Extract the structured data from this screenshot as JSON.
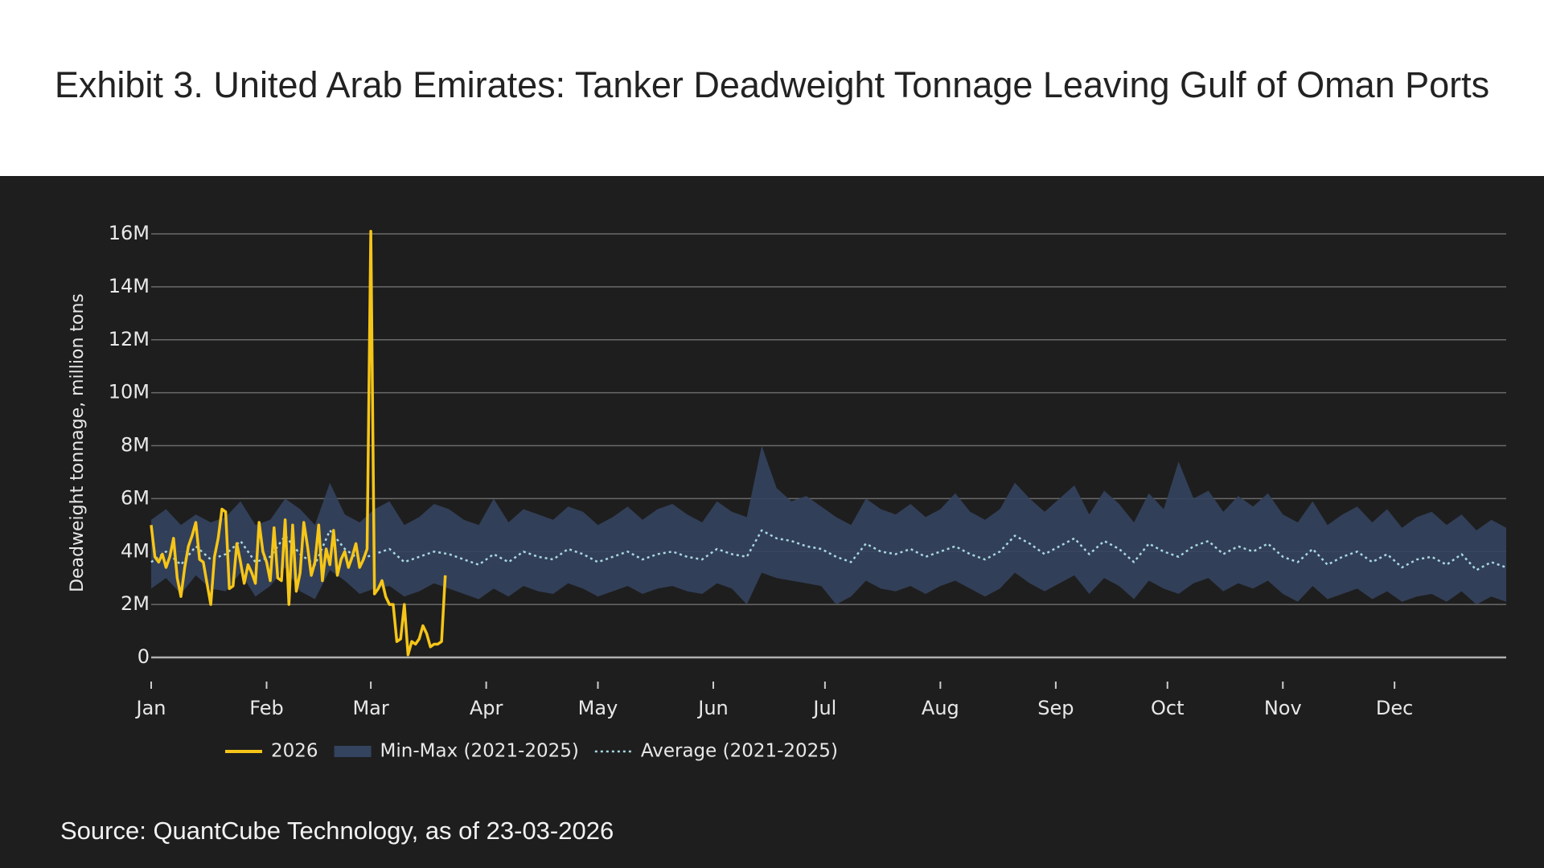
{
  "chart_data": {
    "type": "line",
    "title": "Exhibit 3. United Arab Emirates: Tanker Deadweight Tonnage Leaving Gulf of Oman Ports",
    "ylabel": "Deadweight tonnage, million tons",
    "source": "Source: QuantCube Technology, as of 23-03-2026",
    "xlim": [
      0,
      364
    ],
    "xticks": [
      {
        "value": 0,
        "label": "Jan"
      },
      {
        "value": 31,
        "label": "Feb"
      },
      {
        "value": 59,
        "label": "Mar"
      },
      {
        "value": 90,
        "label": "Apr"
      },
      {
        "value": 120,
        "label": "May"
      },
      {
        "value": 151,
        "label": "Jun"
      },
      {
        "value": 181,
        "label": "Jul"
      },
      {
        "value": 212,
        "label": "Aug"
      },
      {
        "value": 243,
        "label": "Sep"
      },
      {
        "value": 273,
        "label": "Oct"
      },
      {
        "value": 304,
        "label": "Nov"
      },
      {
        "value": 334,
        "label": "Dec"
      }
    ],
    "ylim": [
      0,
      16
    ],
    "yticks": [
      0,
      {
        "value": 2,
        "label": "2M"
      },
      {
        "value": 4,
        "label": "4M"
      },
      {
        "value": 6,
        "label": "6M"
      },
      {
        "value": 8,
        "label": "8M"
      },
      {
        "value": 10,
        "label": "10M"
      },
      {
        "value": 12,
        "label": "12M"
      },
      {
        "value": 14,
        "label": "14M"
      },
      {
        "value": 16,
        "label": "16M"
      }
    ],
    "grid": true,
    "legend": "bottom",
    "series": [
      {
        "name": "2026",
        "color": "#f5c518",
        "x": [
          0,
          1,
          2,
          3,
          4,
          5,
          6,
          7,
          8,
          9,
          10,
          11,
          12,
          13,
          14,
          15,
          16,
          17,
          18,
          19,
          20,
          21,
          22,
          23,
          24,
          25,
          26,
          27,
          28,
          29,
          30,
          31,
          32,
          33,
          34,
          35,
          36,
          37,
          38,
          39,
          40,
          41,
          42,
          43,
          44,
          45,
          46,
          47,
          48,
          49,
          50,
          51,
          52,
          53,
          54,
          55,
          56,
          57,
          58,
          59,
          60,
          61,
          62,
          63,
          64,
          65,
          66,
          67,
          68,
          69,
          70,
          71,
          72,
          73,
          74,
          75,
          76,
          77,
          78,
          79
        ],
        "values": [
          5.0,
          3.8,
          3.6,
          3.9,
          3.4,
          3.8,
          4.5,
          3.0,
          2.3,
          3.4,
          4.2,
          4.6,
          5.1,
          3.7,
          3.6,
          2.8,
          2.0,
          3.8,
          4.5,
          5.6,
          5.5,
          2.6,
          2.7,
          4.3,
          3.6,
          2.8,
          3.5,
          3.2,
          2.8,
          5.1,
          4.0,
          3.6,
          2.9,
          4.9,
          3.0,
          2.9,
          5.2,
          2.0,
          5.0,
          2.5,
          3.2,
          5.1,
          4.2,
          3.1,
          3.6,
          5.0,
          2.9,
          4.1,
          3.5,
          4.8,
          3.1,
          3.7,
          4.0,
          3.4,
          3.8,
          4.3,
          3.4,
          3.7,
          4.1,
          16.1,
          2.4,
          2.6,
          2.9,
          2.3,
          2.0,
          2.0,
          0.6,
          0.7,
          2.0,
          0.1,
          0.6,
          0.5,
          0.7,
          1.2,
          0.9,
          0.4,
          0.5,
          0.5,
          0.6,
          3.1
        ]
      },
      {
        "name": "Min-Max (2021-2025)",
        "color": "#34435e",
        "x": [
          0,
          4,
          8,
          12,
          16,
          20,
          24,
          28,
          32,
          36,
          40,
          44,
          48,
          52,
          56,
          60,
          64,
          68,
          72,
          76,
          80,
          84,
          88,
          92,
          96,
          100,
          104,
          108,
          112,
          116,
          120,
          124,
          128,
          132,
          136,
          140,
          144,
          148,
          152,
          156,
          160,
          164,
          168,
          172,
          176,
          180,
          184,
          188,
          192,
          196,
          200,
          204,
          208,
          212,
          216,
          220,
          224,
          228,
          232,
          236,
          240,
          244,
          248,
          252,
          256,
          260,
          264,
          268,
          272,
          276,
          280,
          284,
          288,
          292,
          296,
          300,
          304,
          308,
          312,
          316,
          320,
          324,
          328,
          332,
          336,
          340,
          344,
          348,
          352,
          356,
          360,
          364
        ],
        "high": [
          5.2,
          5.6,
          5.0,
          5.4,
          5.1,
          5.3,
          5.9,
          5.0,
          5.2,
          6.0,
          5.6,
          5.0,
          6.6,
          5.4,
          5.1,
          5.6,
          5.9,
          5.0,
          5.3,
          5.8,
          5.6,
          5.2,
          5.0,
          6.0,
          5.1,
          5.6,
          5.4,
          5.2,
          5.7,
          5.5,
          5.0,
          5.3,
          5.7,
          5.2,
          5.6,
          5.8,
          5.4,
          5.1,
          5.9,
          5.5,
          5.3,
          8.0,
          6.4,
          5.9,
          6.1,
          5.7,
          5.3,
          5.0,
          6.0,
          5.6,
          5.4,
          5.8,
          5.3,
          5.6,
          6.2,
          5.5,
          5.2,
          5.6,
          6.6,
          6.0,
          5.5,
          6.0,
          6.5,
          5.4,
          6.3,
          5.8,
          5.1,
          6.2,
          5.6,
          7.4,
          6.0,
          6.3,
          5.5,
          6.1,
          5.7,
          6.2,
          5.4,
          5.1,
          5.9,
          5.0,
          5.4,
          5.7,
          5.1,
          5.6,
          4.9,
          5.3,
          5.5,
          5.0,
          5.4,
          4.8,
          5.2,
          4.9
        ],
        "low": [
          2.6,
          3.0,
          2.4,
          3.1,
          2.6,
          2.5,
          3.2,
          2.3,
          2.7,
          3.4,
          2.5,
          2.2,
          3.3,
          2.9,
          2.4,
          2.6,
          2.7,
          2.3,
          2.5,
          2.8,
          2.6,
          2.4,
          2.2,
          2.6,
          2.3,
          2.7,
          2.5,
          2.4,
          2.8,
          2.6,
          2.3,
          2.5,
          2.7,
          2.4,
          2.6,
          2.7,
          2.5,
          2.4,
          2.8,
          2.6,
          2.0,
          3.2,
          3.0,
          2.9,
          2.8,
          2.7,
          2.0,
          2.3,
          2.9,
          2.6,
          2.5,
          2.7,
          2.4,
          2.7,
          2.9,
          2.6,
          2.3,
          2.6,
          3.2,
          2.8,
          2.5,
          2.8,
          3.1,
          2.4,
          3.0,
          2.7,
          2.2,
          2.9,
          2.6,
          2.4,
          2.8,
          3.0,
          2.5,
          2.8,
          2.6,
          2.9,
          2.4,
          2.1,
          2.7,
          2.2,
          2.4,
          2.6,
          2.2,
          2.5,
          2.1,
          2.3,
          2.4,
          2.1,
          2.5,
          2.0,
          2.3,
          2.1
        ]
      },
      {
        "name": "Average (2021-2025)",
        "color": "#a8d8e0",
        "x": [
          0,
          4,
          8,
          12,
          16,
          20,
          24,
          28,
          32,
          36,
          40,
          44,
          48,
          52,
          56,
          60,
          64,
          68,
          72,
          76,
          80,
          84,
          88,
          92,
          96,
          100,
          104,
          108,
          112,
          116,
          120,
          124,
          128,
          132,
          136,
          140,
          144,
          148,
          152,
          156,
          160,
          164,
          168,
          172,
          176,
          180,
          184,
          188,
          192,
          196,
          200,
          204,
          208,
          212,
          216,
          220,
          224,
          228,
          232,
          236,
          240,
          244,
          248,
          252,
          256,
          260,
          264,
          268,
          272,
          276,
          280,
          284,
          288,
          292,
          296,
          300,
          304,
          308,
          312,
          316,
          320,
          324,
          328,
          332,
          336,
          340,
          344,
          348,
          352,
          356,
          360,
          364
        ],
        "values": [
          3.6,
          4.0,
          3.5,
          4.2,
          3.7,
          3.9,
          4.4,
          3.6,
          3.8,
          4.6,
          3.9,
          3.5,
          4.8,
          4.1,
          3.7,
          3.9,
          4.1,
          3.6,
          3.8,
          4.0,
          3.9,
          3.7,
          3.5,
          3.9,
          3.6,
          4.0,
          3.8,
          3.7,
          4.1,
          3.9,
          3.6,
          3.8,
          4.0,
          3.7,
          3.9,
          4.0,
          3.8,
          3.7,
          4.1,
          3.9,
          3.8,
          4.8,
          4.5,
          4.4,
          4.2,
          4.1,
          3.8,
          3.6,
          4.3,
          4.0,
          3.9,
          4.1,
          3.8,
          4.0,
          4.2,
          3.9,
          3.7,
          4.0,
          4.6,
          4.3,
          3.9,
          4.2,
          4.5,
          3.9,
          4.4,
          4.1,
          3.6,
          4.3,
          4.0,
          3.8,
          4.2,
          4.4,
          3.9,
          4.2,
          4.0,
          4.3,
          3.8,
          3.6,
          4.1,
          3.5,
          3.8,
          4.0,
          3.6,
          3.9,
          3.4,
          3.7,
          3.8,
          3.5,
          3.9,
          3.3,
          3.6,
          3.4
        ],
        "dash": true
      }
    ]
  }
}
